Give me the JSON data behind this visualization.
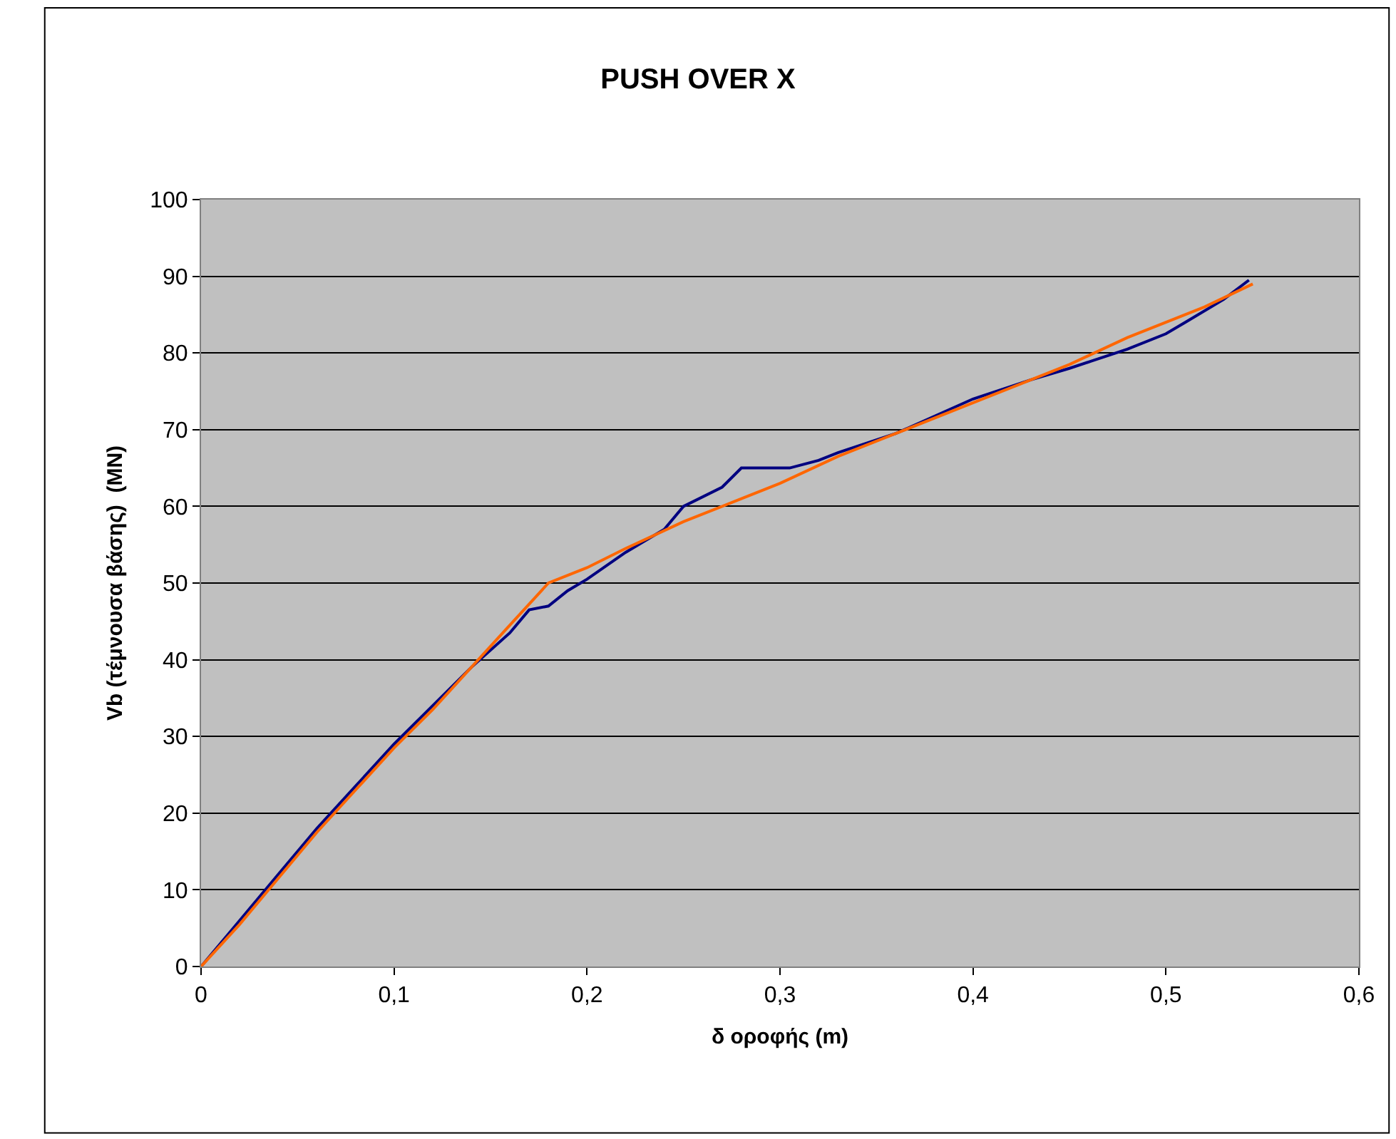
{
  "chart_data": {
    "type": "line",
    "title": "PUSH OVER X",
    "xlabel": "δ οροφής (m)",
    "ylabel": "Vb (τέμνουσα βάσης)  (MN)",
    "xlim": [
      0,
      0.6
    ],
    "xticks": [
      {
        "value": 0,
        "label": "0"
      },
      {
        "value": 0.1,
        "label": "0,1"
      },
      {
        "value": 0.2,
        "label": "0,2"
      },
      {
        "value": 0.3,
        "label": "0,3"
      },
      {
        "value": 0.4,
        "label": "0,4"
      },
      {
        "value": 0.5,
        "label": "0,5"
      },
      {
        "value": 0.6,
        "label": "0,6"
      }
    ],
    "ylim": [
      0,
      100
    ],
    "yticks": [
      0,
      10,
      20,
      30,
      40,
      50,
      60,
      70,
      80,
      90,
      100
    ],
    "grid": "y",
    "marker": "none",
    "line_style": "solid",
    "series": [
      {
        "color": "#000080",
        "x": [
          0,
          0.02,
          0.04,
          0.06,
          0.08,
          0.1,
          0.12,
          0.14,
          0.16,
          0.17,
          0.18,
          0.19,
          0.2,
          0.22,
          0.24,
          0.25,
          0.27,
          0.28,
          0.3,
          0.305,
          0.32,
          0.33,
          0.36,
          0.4,
          0.43,
          0.45,
          0.48,
          0.5,
          0.51,
          0.53,
          0.543
        ],
        "values": [
          0,
          6,
          12,
          18,
          23.5,
          29,
          34,
          39,
          43.5,
          46.5,
          47,
          49,
          50.5,
          54,
          57,
          60,
          62.5,
          65,
          65,
          65,
          66,
          67,
          69.5,
          74,
          76.5,
          78,
          80.5,
          82.5,
          84,
          87,
          89.5
        ]
      },
      {
        "color": "#ff6600",
        "x": [
          0,
          0.02,
          0.04,
          0.06,
          0.08,
          0.1,
          0.12,
          0.14,
          0.16,
          0.18,
          0.2,
          0.22,
          0.25,
          0.28,
          0.3,
          0.33,
          0.36,
          0.4,
          0.43,
          0.45,
          0.48,
          0.5,
          0.52,
          0.545
        ],
        "values": [
          0,
          5.5,
          11.5,
          17.5,
          23,
          28.5,
          33.5,
          39,
          44.5,
          50,
          52,
          54.5,
          58,
          61,
          63,
          66.5,
          69.5,
          73.5,
          76.5,
          78.5,
          82,
          84,
          86,
          89
        ]
      }
    ]
  }
}
